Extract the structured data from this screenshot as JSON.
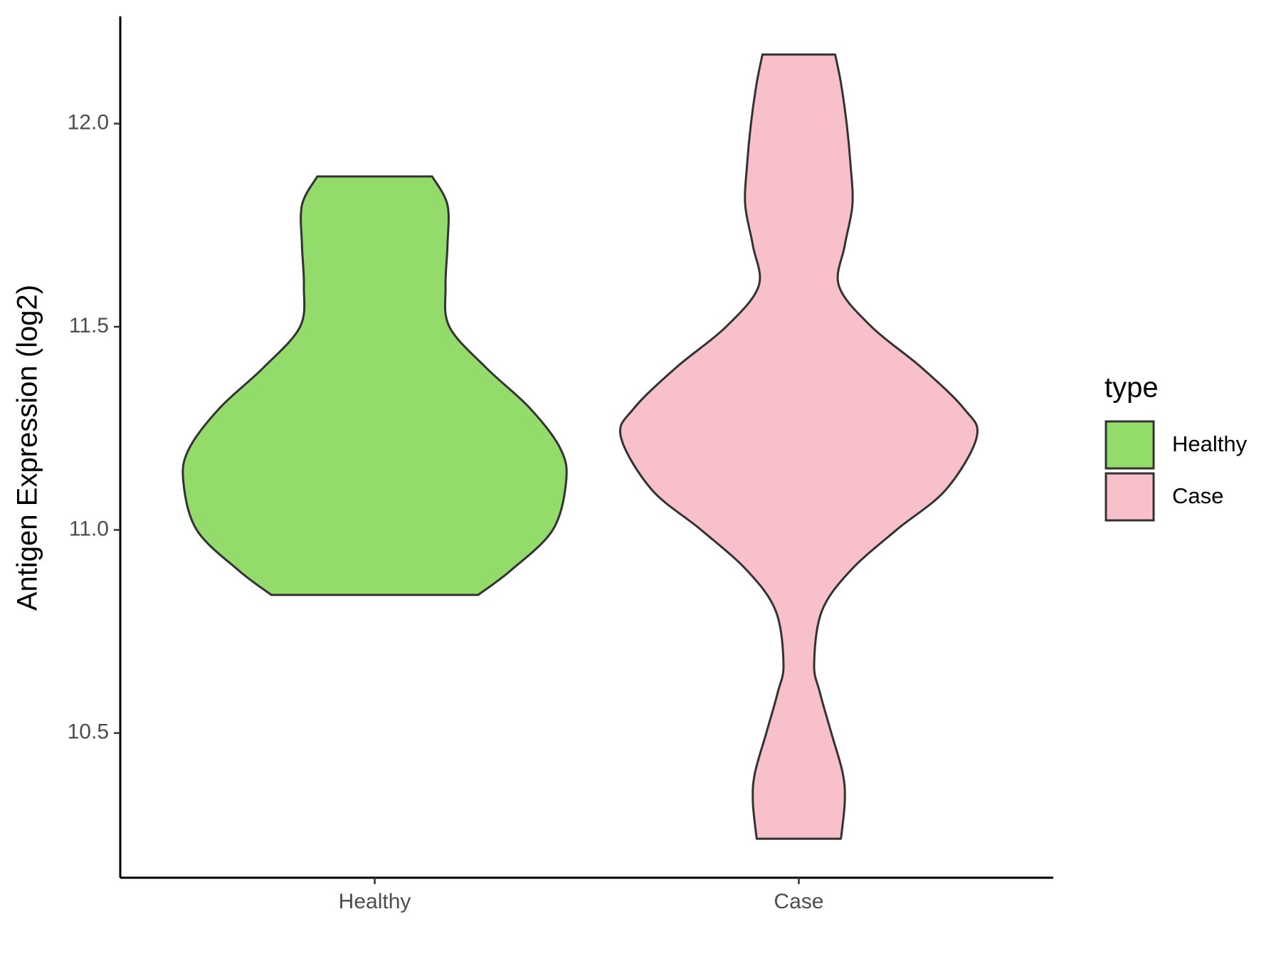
{
  "chart_data": {
    "type": "violin",
    "ylabel": "Antigen Expression (log2)",
    "categories": [
      "Healthy",
      "Case"
    ],
    "ylim": [
      10.144,
      12.264
    ],
    "yticks": [
      {
        "value": 10.5,
        "label": "10.5"
      },
      {
        "value": 11,
        "label": "11.0"
      },
      {
        "value": 11.5,
        "label": "11.5"
      },
      {
        "value": 12,
        "label": "12.0"
      }
    ],
    "legend_title": "type",
    "legend_position": "right",
    "series": [
      {
        "name": "Healthy",
        "color": "#93dc6b",
        "y": [
          10.84,
          10.9,
          11.0,
          11.12,
          11.2,
          11.3,
          11.4,
          11.5,
          11.6,
          11.7,
          11.8,
          11.87
        ],
        "density": [
          0.54,
          0.71,
          0.93,
          1.0,
          0.97,
          0.81,
          0.58,
          0.39,
          0.37,
          0.38,
          0.38,
          0.3
        ]
      },
      {
        "name": "Case",
        "color": "#f7c0cb",
        "y": [
          10.24,
          10.33,
          10.4,
          10.5,
          10.6,
          10.67,
          10.8,
          10.9,
          11.0,
          11.1,
          11.23,
          11.3,
          11.4,
          11.5,
          11.6,
          11.7,
          11.8,
          11.9,
          12.0,
          12.1,
          12.17
        ],
        "density": [
          0.22,
          0.24,
          0.23,
          0.17,
          0.11,
          0.08,
          0.12,
          0.27,
          0.51,
          0.77,
          0.93,
          0.86,
          0.64,
          0.38,
          0.21,
          0.24,
          0.28,
          0.27,
          0.25,
          0.22,
          0.19
        ]
      }
    ]
  }
}
